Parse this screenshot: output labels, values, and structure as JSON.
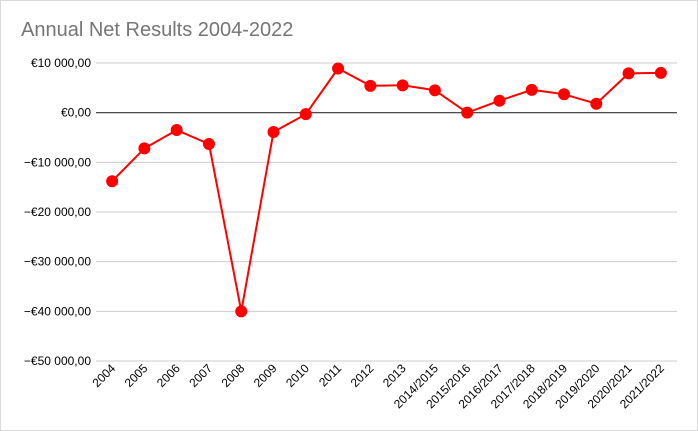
{
  "chart_data": {
    "type": "line",
    "title": "Annual Net Results 2004-2022",
    "xlabel": "",
    "ylabel": "",
    "categories": [
      "2004",
      "2005",
      "2006",
      "2007",
      "2008",
      "2009",
      "2010",
      "2011",
      "2012",
      "2013",
      "2014/2015",
      "2015/2016",
      "2016/2017",
      "2017/2018",
      "2018/2019",
      "2019/2020",
      "2020/2021",
      "2021/2022"
    ],
    "series": [
      {
        "values": [
          -13800,
          -7200,
          -3500,
          -6300,
          -40000,
          -3900,
          -300,
          8900,
          5400,
          5500,
          4500,
          0,
          2400,
          4600,
          3700,
          1800,
          7900,
          8000
        ],
        "color": "#ff0000"
      }
    ],
    "ylim": [
      -50000,
      10000
    ],
    "yticks": [
      10000,
      0,
      -10000,
      -20000,
      -30000,
      -40000,
      -50000
    ],
    "ytick_labels": [
      "€10 000,00",
      "€0,00",
      "−€10 000,00",
      "−€20 000,00",
      "−€30 000,00",
      "−€40 000,00",
      "−€50 000,00"
    ],
    "grid": true,
    "legend": "none"
  }
}
